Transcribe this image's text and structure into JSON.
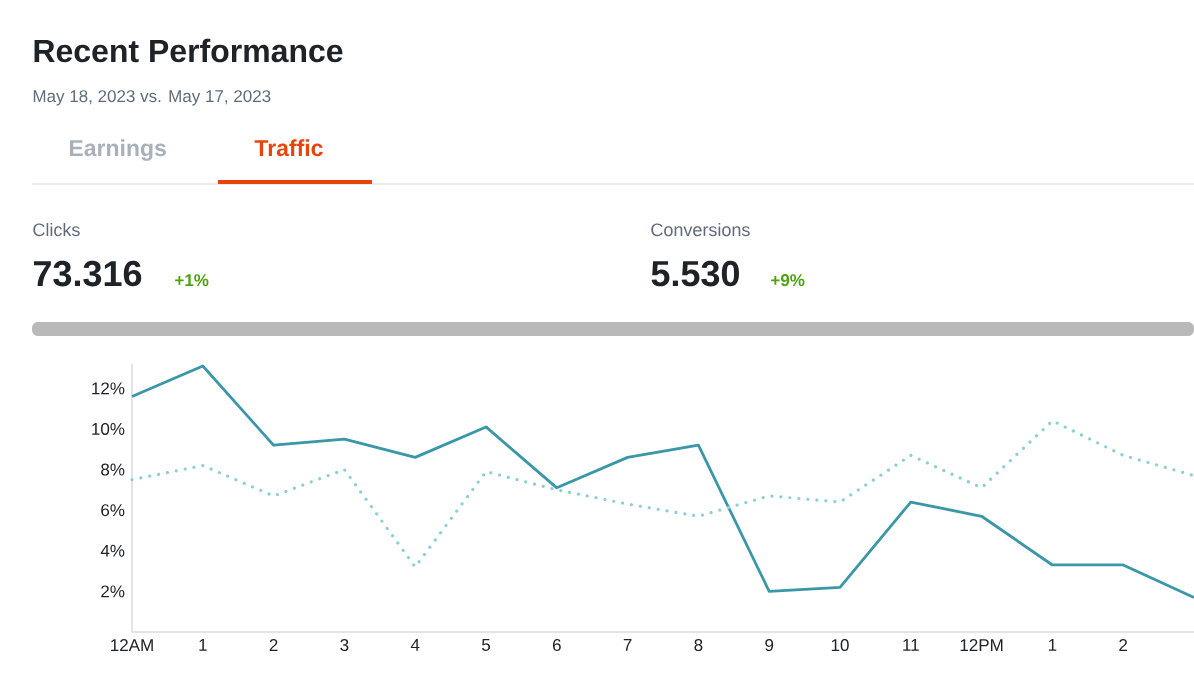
{
  "chart_data": {
    "type": "line",
    "title": "Recent Performance",
    "subtitle": "May 18, 2023 vs. May 17, 2023",
    "annotations": [
      "Earnings",
      "Traffic",
      "Clicks",
      "73.316",
      "+1%",
      "Conversions",
      "5.530",
      "+9%"
    ],
    "categories": [
      "12AM",
      "1",
      "2",
      "3",
      "4",
      "5",
      "6",
      "7",
      "8",
      "9",
      "10",
      "11",
      "12PM",
      "1",
      "2",
      null
    ],
    "series": [
      {
        "color": "#3a97a8",
        "line_style": "solid",
        "values": [
          11.6,
          13.1,
          9.2,
          9.5,
          8.6,
          10.1,
          7.1,
          8.6,
          9.2,
          2.0,
          2.2,
          6.4,
          5.7,
          3.3,
          3.3,
          1.7
        ]
      },
      {
        "color": "#8ccfd6",
        "line_style": "dotted",
        "values": [
          7.5,
          8.2,
          6.7,
          8.0,
          3.2,
          7.9,
          7.0,
          6.3,
          5.7,
          6.7,
          6.4,
          8.7,
          7.1,
          10.4,
          8.7,
          7.7
        ]
      }
    ],
    "ylim": [
      0,
      13.2
    ],
    "yticks": [
      {
        "value": 2,
        "label": "2%"
      },
      {
        "value": 4,
        "label": "4%"
      },
      {
        "value": 6,
        "label": "6%"
      },
      {
        "value": 8,
        "label": "8%"
      },
      {
        "value": 10,
        "label": "10%"
      },
      {
        "value": 12,
        "label": "12%"
      }
    ]
  }
}
